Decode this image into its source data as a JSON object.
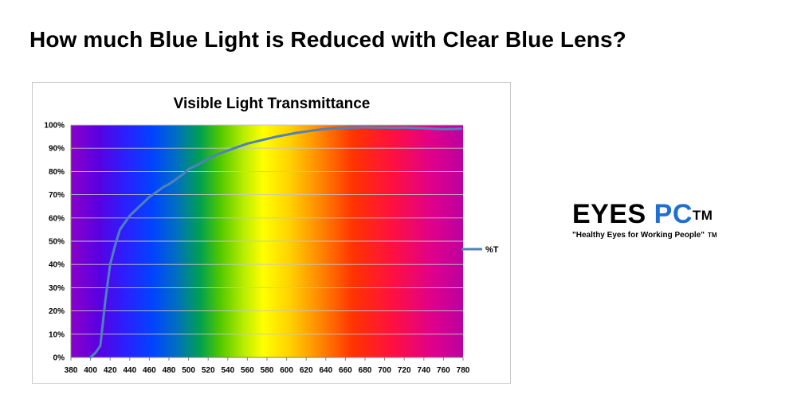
{
  "headline": "How much Blue Light is Reduced with Clear Blue Lens?",
  "logo": {
    "word1": "EYES",
    "word2": "PC",
    "trademark": "TM",
    "tagline": "\"Healthy Eyes for Working People\"",
    "tagline_trademark": "TM",
    "accent_color": "#1f6fd1"
  },
  "chart_data": {
    "type": "line",
    "title": "Visible Light Transmittance",
    "xlabel": "",
    "ylabel": "",
    "xlim": [
      380,
      780
    ],
    "ylim": [
      0,
      100
    ],
    "x_ticks": [
      "380",
      "400",
      "420",
      "440",
      "460",
      "480",
      "500",
      "520",
      "540",
      "560",
      "580",
      "600",
      "620",
      "640",
      "660",
      "680",
      "700",
      "720",
      "740",
      "760",
      "780"
    ],
    "y_ticks": [
      "0%",
      "10%",
      "20%",
      "30%",
      "40%",
      "50%",
      "60%",
      "70%",
      "80%",
      "90%",
      "100%"
    ],
    "grid": true,
    "background": "visible spectrum gradient",
    "legend_position": "right",
    "series": [
      {
        "name": "%T",
        "color": "#4f81bd",
        "x": [
          400,
          405,
          410,
          415,
          420,
          425,
          430,
          435,
          440,
          445,
          450,
          455,
          460,
          465,
          470,
          475,
          480,
          485,
          490,
          495,
          500,
          510,
          520,
          530,
          540,
          550,
          560,
          570,
          580,
          590,
          600,
          610,
          620,
          630,
          640,
          650,
          660,
          670,
          680,
          690,
          700,
          710,
          720,
          730,
          740,
          750,
          760,
          770,
          778
        ],
        "values": [
          0,
          2,
          5,
          24,
          40,
          48,
          55,
          58,
          61,
          63,
          65,
          67,
          69,
          70.5,
          72,
          73.5,
          74.5,
          76,
          77.5,
          79,
          81,
          83,
          85.5,
          87.5,
          89,
          90.5,
          92,
          93,
          94,
          95,
          95.8,
          96.6,
          97.2,
          97.8,
          98.3,
          98.6,
          98.8,
          98.9,
          99,
          98.9,
          98.9,
          98.8,
          98.9,
          98.7,
          98.6,
          98.4,
          98.2,
          98.3,
          98.4
        ]
      }
    ]
  }
}
